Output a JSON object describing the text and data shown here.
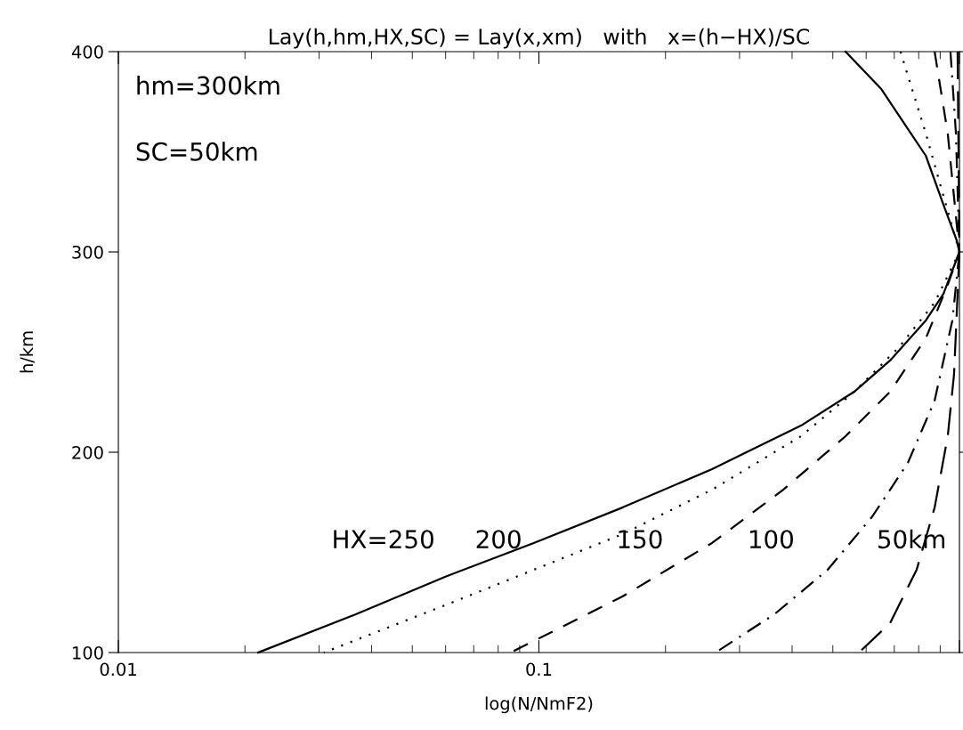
{
  "chart_data": {
    "type": "line",
    "title": "Lay(h,hm,HX,SC) = Lay(x,xm)   with   x=(h−HX)/SC",
    "xlabel": "log(N/NmF2)",
    "ylabel": "h/km",
    "log": "x",
    "xlim": [
      0.01,
      1
    ],
    "xticks": [
      0.01,
      0.1,
      {
        "value": 1,
        "label": null
      }
    ],
    "ylim": [
      100,
      400
    ],
    "yticks": [
      100,
      200,
      300,
      400
    ],
    "grid": false,
    "legend": false,
    "series": [
      {
        "color": "#000000",
        "line_style": "solid",
        "x": [
          0.536,
          0.652,
          0.832,
          0.916,
          0.985,
          1,
          0.916,
          0.832,
          0.684,
          0.562,
          0.42,
          0.258,
          0.158,
          0.0972,
          0.0598,
          0.0367,
          0.0215
        ],
        "values": [
          400,
          381.3,
          348,
          323.6,
          305.8,
          300,
          279.1,
          265.8,
          245.8,
          230.2,
          213.3,
          191.6,
          172.4,
          154.7,
          137.8,
          119.1,
          100
        ]
      },
      {
        "color": "#000000",
        "line_style": "dotted",
        "x": [
          0.724,
          0.832,
          0.916,
          1,
          0.873,
          0.718,
          0.562,
          0.42,
          0.258,
          0.158,
          0.0972,
          0.0598,
          0.0308
        ],
        "values": [
          400,
          359.1,
          328,
          300,
          274.7,
          252.4,
          230.2,
          208,
          181.3,
          159.1,
          141.3,
          123.6,
          100
        ]
      },
      {
        "color": "#000000",
        "line_style": "dashed",
        "x": [
          0.873,
          0.938,
          1,
          0.938,
          0.832,
          0.684,
          0.536,
          0.381,
          0.258,
          0.158,
          0.0857
        ],
        "values": [
          400,
          359.1,
          300,
          283.6,
          256.9,
          230.2,
          208,
          181.3,
          154.7,
          128,
          100
        ]
      },
      {
        "color": "#000000",
        "line_style": "dashdot",
        "x": [
          0.952,
          0.981,
          1,
          0.962,
          0.873,
          0.754,
          0.621,
          0.486,
          0.363,
          0.263
        ],
        "values": [
          400,
          359.1,
          300,
          265.8,
          225.8,
          194.7,
          168,
          141.3,
          119.1,
          100
        ]
      },
      {
        "color": "#000000",
        "line_style": "longdash",
        "x": [
          0.99,
          1,
          0.971,
          0.938,
          0.873,
          0.791,
          0.684,
          0.577
        ],
        "values": [
          400,
          300,
          239.1,
          208,
          172.4,
          141.3,
          114.7,
          100
        ]
      }
    ],
    "annotations": [
      "hm=300km",
      "SC=50km",
      "HX=250",
      "200",
      "150",
      "100",
      "50km"
    ]
  }
}
